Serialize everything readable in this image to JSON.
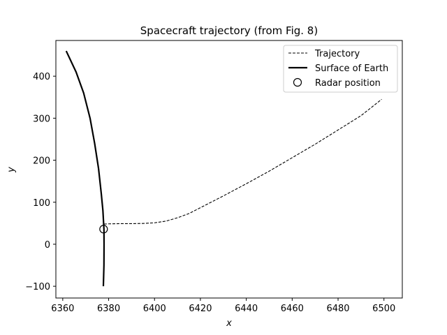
{
  "chart_data": {
    "type": "line",
    "title": "Spacecraft trajectory (from Fig. 8)",
    "xlabel": "x",
    "ylabel": "y",
    "xlim": [
      6357,
      6508
    ],
    "ylim": [
      -128,
      485
    ],
    "xticks": [
      6360,
      6380,
      6400,
      6420,
      6440,
      6460,
      6480,
      6500
    ],
    "yticks": [
      -100,
      0,
      100,
      200,
      300,
      400
    ],
    "grid": false,
    "legend_position": "top-right",
    "series": [
      {
        "name": "Trajectory",
        "style": "dashed",
        "color": "#000000",
        "x": [
          6378,
          6380,
          6385,
          6390,
          6395,
          6400,
          6405,
          6410,
          6415,
          6420,
          6430,
          6440,
          6450,
          6460,
          6470,
          6480,
          6490,
          6499
        ],
        "y": [
          48,
          48.5,
          49,
          49,
          49.5,
          51,
          55,
          63,
          73,
          87,
          115,
          144,
          174,
          206,
          238,
          272,
          306,
          345
        ]
      },
      {
        "name": "Surface of Earth",
        "style": "solid",
        "color": "#000000",
        "x": [
          6377.7,
          6377.95,
          6378.0,
          6377.95,
          6377.5,
          6376.8,
          6375.6,
          6373.9,
          6371.9,
          6369.1,
          6365.8,
          6361.5
        ],
        "y": [
          -100,
          -50,
          0,
          36,
          80,
          120,
          180,
          240,
          300,
          360,
          410,
          460
        ]
      },
      {
        "name": "Radar position",
        "style": "marker",
        "marker": "open-circle",
        "color": "#000000",
        "x": [
          6377.8
        ],
        "y": [
          36
        ]
      }
    ]
  }
}
